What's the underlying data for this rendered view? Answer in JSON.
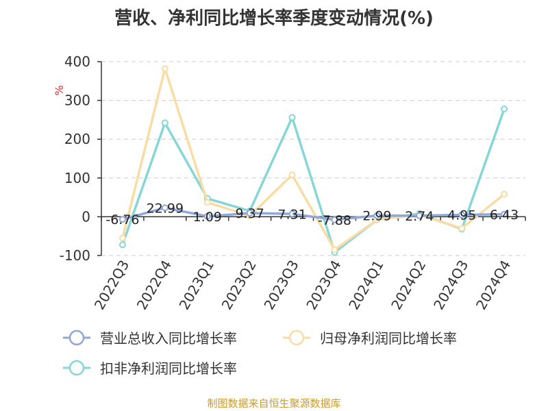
{
  "chart_data": {
    "type": "line",
    "title": "营收、净利同比增长率季度变动情况(%)",
    "ylabel": "%",
    "categories": [
      "2022Q3",
      "2022Q4",
      "2023Q1",
      "2023Q2",
      "2023Q3",
      "2023Q4",
      "2024Q1",
      "2024Q2",
      "2024Q3",
      "2024Q4"
    ],
    "ylim": [
      -100,
      400
    ],
    "yticks": [
      -100,
      0,
      100,
      200,
      300,
      400
    ],
    "grid": true,
    "legend_position": "bottom",
    "series": [
      {
        "name": "营业总收入同比增长率",
        "color": "#8fa8d8",
        "values": [
          -6.76,
          22.99,
          1.09,
          9.37,
          7.31,
          -7.88,
          2.99,
          2.74,
          4.95,
          6.43
        ],
        "labels": [
          "-6.76",
          "22.99",
          "1.09",
          "9.37",
          "7.31",
          "-7.88",
          "2.99",
          "2.74",
          "4.95",
          "6.43"
        ]
      },
      {
        "name": "归母净利润同比增长率",
        "color": "#f9dca4",
        "values": [
          -55,
          382,
          37,
          2,
          108,
          -85,
          -8,
          5,
          -30,
          58
        ]
      },
      {
        "name": "扣非净利润同比增长率",
        "color": "#86d6d8",
        "values": [
          -72,
          242,
          47,
          15,
          256,
          -92,
          -8,
          8,
          -32,
          278
        ]
      }
    ]
  },
  "source_note": "制图数据来自恒生聚源数据库"
}
